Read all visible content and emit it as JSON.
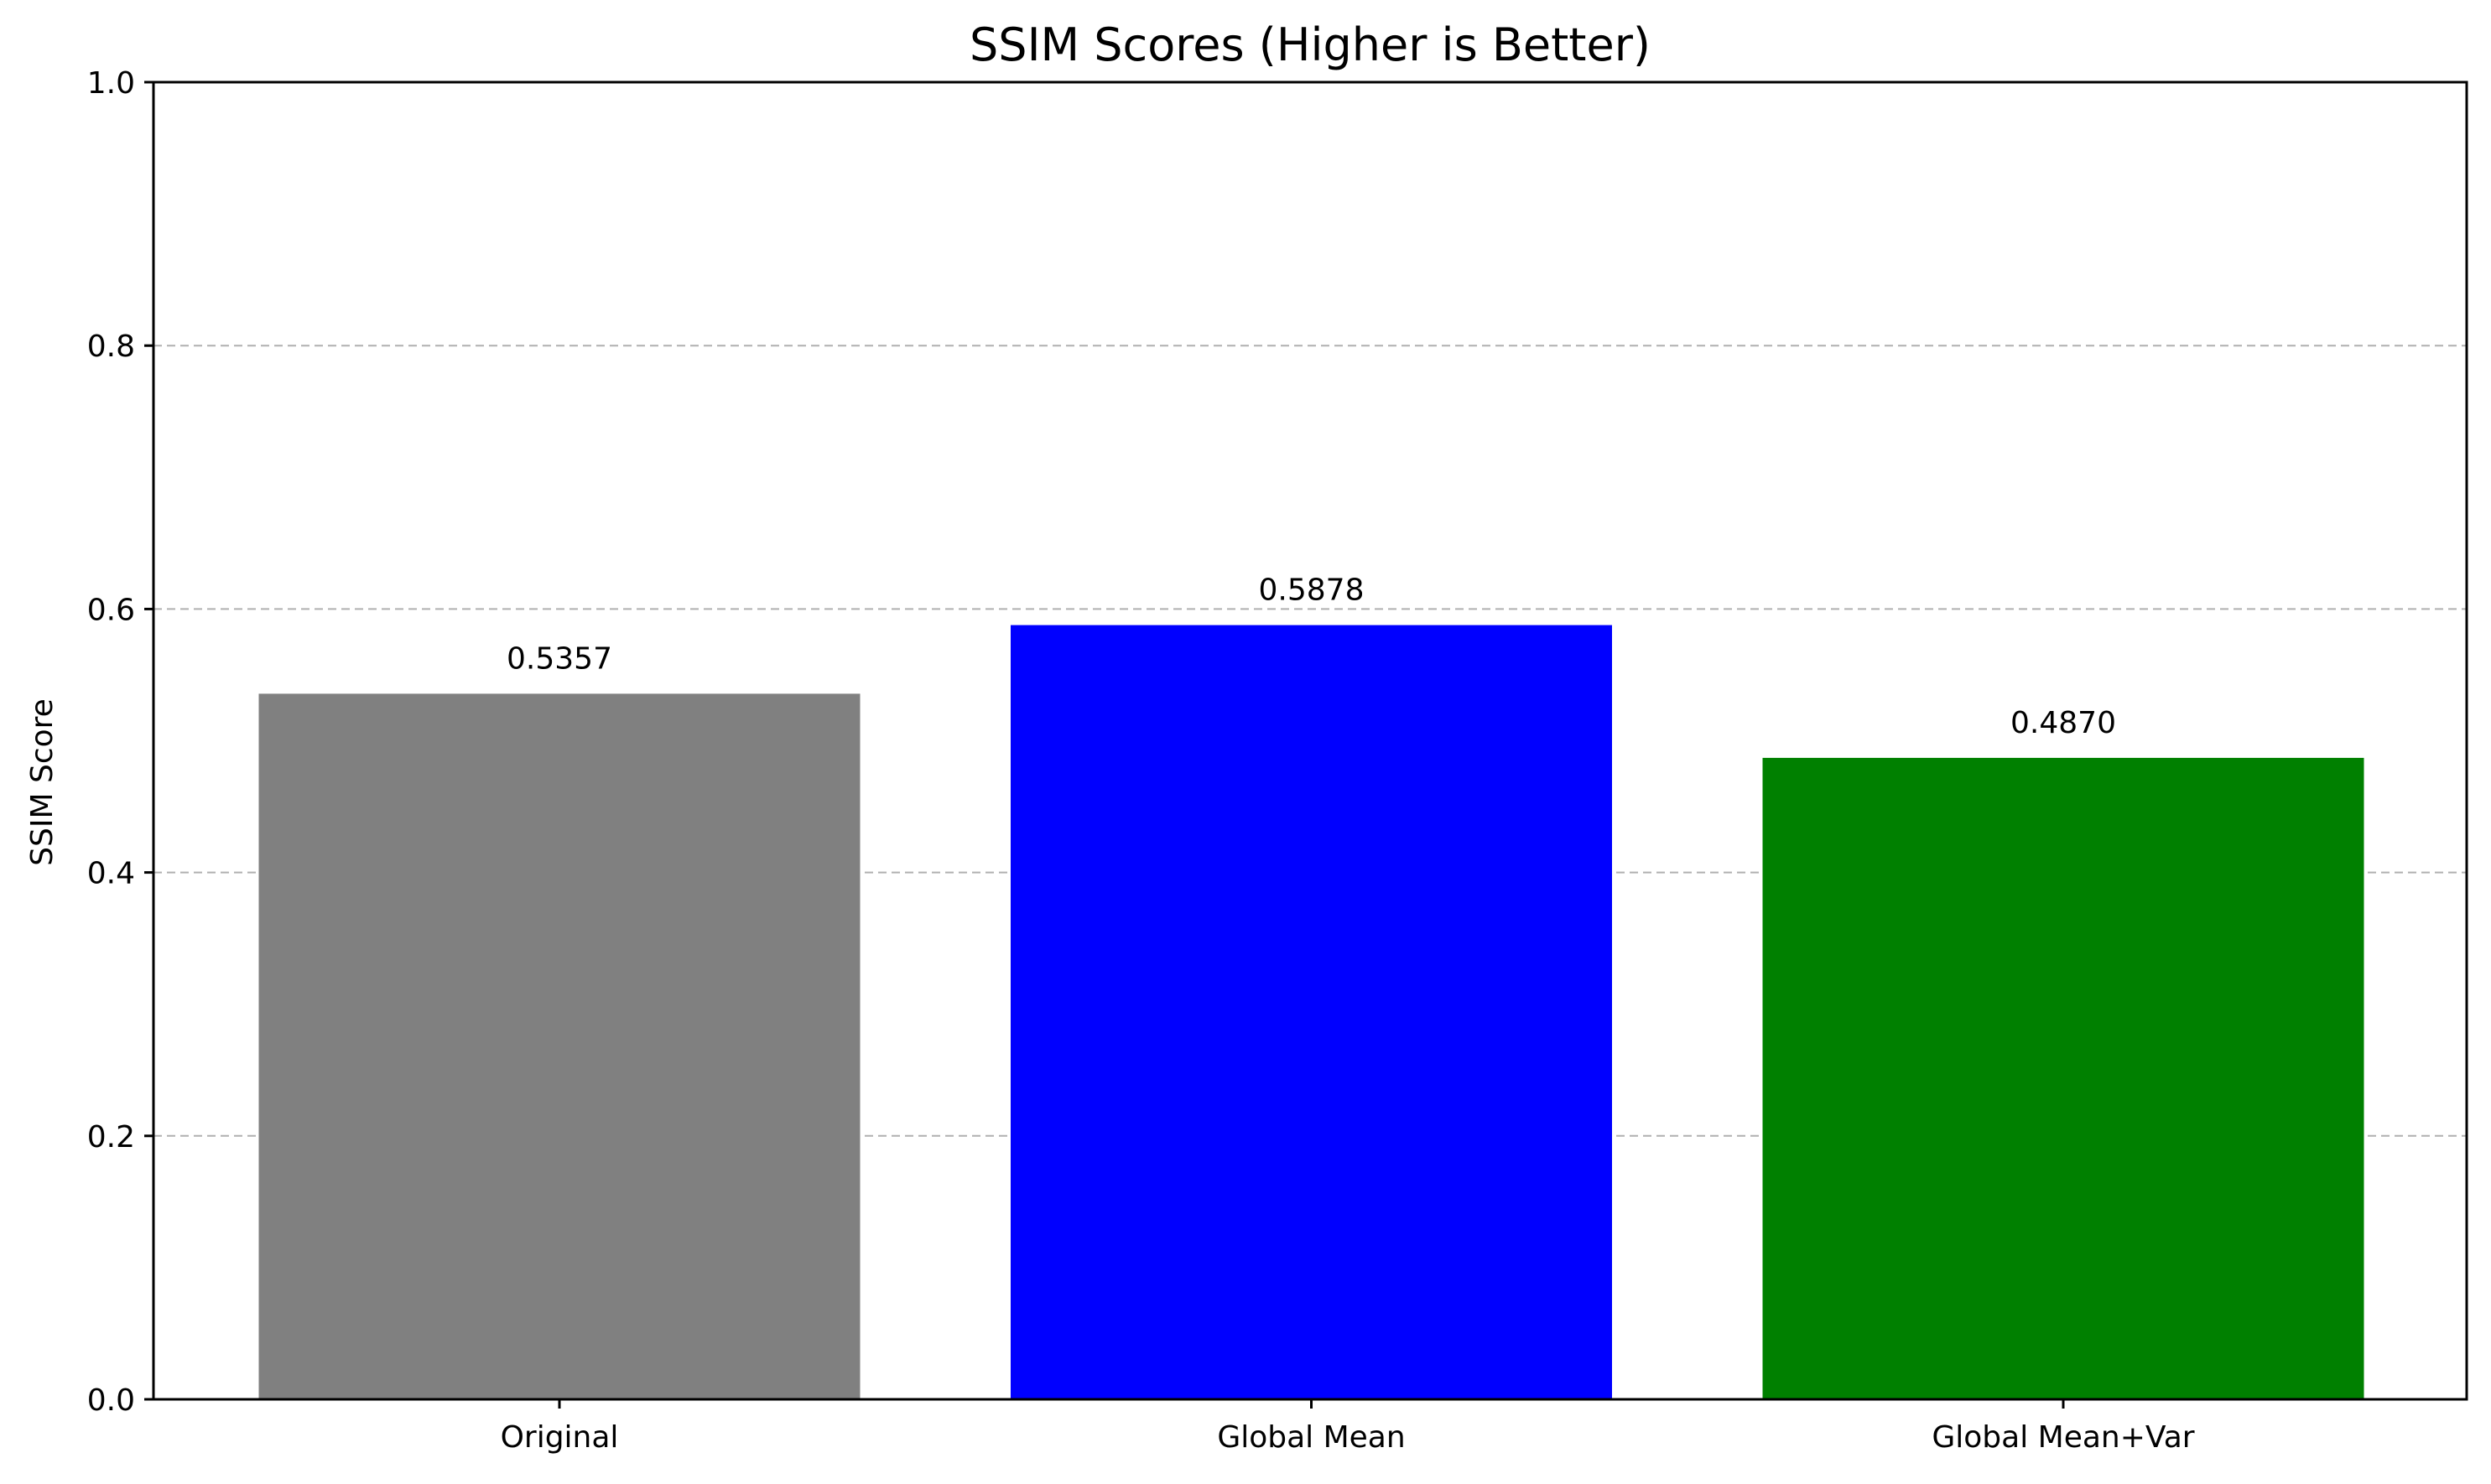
{
  "chart_data": {
    "type": "bar",
    "title": "SSIM Scores (Higher is Better)",
    "xlabel": "",
    "ylabel": "SSIM Score",
    "categories": [
      "Original",
      "Global Mean",
      "Global Mean+Var"
    ],
    "values": [
      0.5357,
      0.5878,
      0.487
    ],
    "value_labels": [
      "0.5357",
      "0.5878",
      "0.4870"
    ],
    "colors": [
      "#808080",
      "#0000ff",
      "#008000"
    ],
    "ylim": [
      0,
      1.0
    ],
    "yticks": [
      0.0,
      0.2,
      0.4,
      0.6,
      0.8,
      1.0
    ],
    "ytick_labels": [
      "0.0",
      "0.2",
      "0.4",
      "0.6",
      "0.8",
      "1.0"
    ],
    "grid": {
      "axis": "y",
      "style": "dashed",
      "color": "#b0b0b0"
    },
    "legend": "none"
  }
}
